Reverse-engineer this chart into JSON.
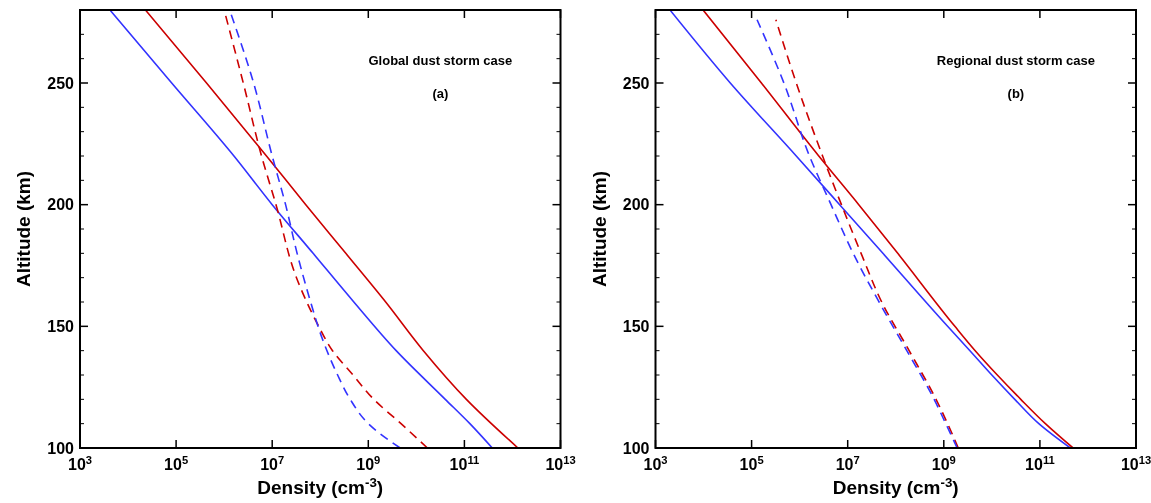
{
  "chart_data": [
    {
      "type": "line",
      "xlabel": "Density (cm$^{-3}$)",
      "ylabel": "Altitude (km)",
      "annotations": [
        "Global dust storm case",
        "(a)"
      ],
      "log": "x",
      "xlim": [
        1000,
        10000000000000.0
      ],
      "ylim": [
        100,
        280
      ],
      "xticks": [
        {
          "value": 1000,
          "label": "10$^{3}$"
        },
        {
          "value": 100000.0,
          "label": "10$^{5}$"
        },
        {
          "value": 10000000.0,
          "label": "10$^{7}$"
        },
        {
          "value": 1000000000.0,
          "label": "10$^{9}$"
        },
        {
          "value": 100000000000.0,
          "label": "10$^{11}$"
        },
        {
          "value": 10000000000000.0,
          "label": "10$^{13}$"
        }
      ],
      "yticks": [
        100,
        {
          "value": 110,
          "label": null
        },
        {
          "value": 120,
          "label": null
        },
        {
          "value": 130,
          "label": null
        },
        {
          "value": 140,
          "label": null
        },
        150,
        {
          "value": 160,
          "label": null
        },
        {
          "value": 170,
          "label": null
        },
        {
          "value": 180,
          "label": null
        },
        {
          "value": 190,
          "label": null
        },
        200,
        {
          "value": 210,
          "label": null
        },
        {
          "value": 220,
          "label": null
        },
        {
          "value": 230,
          "label": null
        },
        {
          "value": 240,
          "label": null
        },
        250,
        {
          "value": 260,
          "label": null
        },
        {
          "value": 270,
          "label": null
        }
      ],
      "series": [
        {
          "color": "#cc0000",
          "line_style": "solid",
          "x": [
            1300000000000.0,
            110000000000.0,
            14000000000.0,
            2300000000.0,
            340000000.0,
            50000000.0,
            7600000.0,
            430000.0,
            23000.0
          ],
          "values": [
            100,
            120,
            140,
            160,
            180,
            200,
            220,
            250,
            280
          ]
        },
        {
          "color": "#3333ff",
          "line_style": "solid",
          "x": [
            380000000000.0,
            130000000000.0,
            40000000000.0,
            3800000000.0,
            500000000.0,
            71000000.0,
            10000000.0,
            1600000.0,
            81000.0,
            4200.0
          ],
          "values": [
            100,
            110,
            120,
            140,
            160,
            180,
            200,
            220,
            250,
            280
          ]
        },
        {
          "color": "#cc0000",
          "line_style": "dashed",
          "x": [
            17000000000.0,
            4800000000.0,
            1300000000.0,
            480000000.0,
            180000000.0,
            93000000.0,
            32000000.0,
            12000000.0,
            6000000.0,
            2500000.0,
            1000000.0
          ],
          "values": [
            100,
            110,
            120,
            130,
            140,
            150,
            170,
            200,
            220,
            250,
            280
          ]
        },
        {
          "color": "#3333ff",
          "line_style": "dashed",
          "x": [
            4600000000.0,
            1000000000.0,
            420000000.0,
            230000000.0,
            110000000.0,
            63000000.0,
            33000000.0,
            19000000.0,
            10000000.0,
            4100000.0,
            1300000.0
          ],
          "values": [
            100,
            110,
            120,
            130,
            145,
            160,
            180,
            200,
            220,
            250,
            280
          ]
        }
      ]
    },
    {
      "type": "line",
      "xlabel": "Density (cm$^{-3}$)",
      "ylabel": "Altitude (km)",
      "annotations": [
        "Regional dust storm case",
        "(b)"
      ],
      "log": "x",
      "xlim": [
        1000,
        10000000000000.0
      ],
      "ylim": [
        100,
        280
      ],
      "xticks": [
        {
          "value": 1000,
          "label": "10$^{3}$"
        },
        {
          "value": 100000.0,
          "label": "10$^{5}$"
        },
        {
          "value": 10000000.0,
          "label": "10$^{7}$"
        },
        {
          "value": 1000000000.0,
          "label": "10$^{9}$"
        },
        {
          "value": 100000000000.0,
          "label": "10$^{11}$"
        },
        {
          "value": 10000000000000.0,
          "label": "10$^{13}$"
        }
      ],
      "yticks": [
        100,
        {
          "value": 110,
          "label": null
        },
        {
          "value": 120,
          "label": null
        },
        {
          "value": 130,
          "label": null
        },
        {
          "value": 140,
          "label": null
        },
        150,
        {
          "value": 160,
          "label": null
        },
        {
          "value": 170,
          "label": null
        },
        {
          "value": 180,
          "label": null
        },
        {
          "value": 190,
          "label": null
        },
        200,
        {
          "value": 210,
          "label": null
        },
        {
          "value": 220,
          "label": null
        },
        {
          "value": 230,
          "label": null
        },
        {
          "value": 240,
          "label": null
        },
        250,
        {
          "value": 260,
          "label": null
        },
        {
          "value": 270,
          "label": null
        }
      ],
      "series": [
        {
          "color": "#cc0000",
          "line_style": "solid",
          "x": [
            490000000000.0,
            130000000000.0,
            40000000000.0,
            13000000000.0,
            4500000000.0,
            1700000000.0,
            110000000.0,
            17000000.0,
            2500000.0,
            160000.0,
            9800.0
          ],
          "values": [
            100,
            110,
            120,
            130,
            140,
            150,
            180,
            200,
            220,
            250,
            280
          ]
        },
        {
          "color": "#3333ff",
          "line_style": "solid",
          "x": [
            430000000000.0,
            95000000000.0,
            30000000000.0,
            10000000000.0,
            3500000000.0,
            1200000000.0,
            54000000.0,
            6800000.0,
            850000.0,
            36000.0,
            2000.0
          ],
          "values": [
            100,
            110,
            120,
            130,
            140,
            150,
            180,
            200,
            220,
            250,
            280
          ]
        },
        {
          "color": "#cc0000",
          "line_style": "dashed",
          "x": [
            2000000000.0,
            1200000000.0,
            690000000.0,
            190000000.0,
            51000000.0,
            19000000.0,
            7400000.0,
            3000000.0,
            850000.0,
            320000.0
          ],
          "values": [
            100,
            110,
            120,
            140,
            160,
            180,
            200,
            220,
            250,
            276
          ]
        },
        {
          "color": "#3333ff",
          "line_style": "dashed",
          "x": [
            1900000000.0,
            1100000000.0,
            630000000.0,
            170000000.0,
            45000000.0,
            13000000.0,
            4500000.0,
            1600000.0,
            470000.0,
            130000.0
          ],
          "values": [
            100,
            110,
            120,
            140,
            160,
            180,
            200,
            220,
            250,
            276
          ]
        }
      ]
    }
  ]
}
